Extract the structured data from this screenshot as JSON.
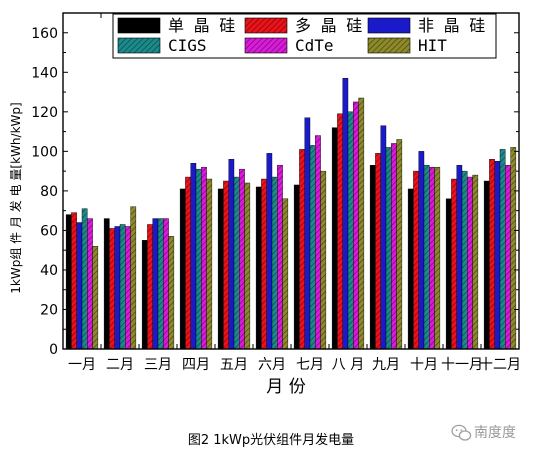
{
  "chart_data": {
    "type": "bar",
    "xlabel": "月 份",
    "ylabel": "1kWp组 件 月 发 电 量[kWh/kWp]",
    "ylim": [
      0,
      170
    ],
    "yticks": [
      0,
      20,
      40,
      60,
      80,
      100,
      120,
      140,
      160
    ],
    "grid": false,
    "legend_position": "top",
    "categories": [
      "一月",
      "二月",
      "三月",
      "四月",
      "五月",
      "六月",
      "七月",
      "八 月",
      "九月",
      "十月",
      "十一月",
      "十二月"
    ],
    "series": [
      {
        "name": "单 晶 硅",
        "color": "#000000",
        "values": [
          68,
          66,
          55,
          81,
          81,
          82,
          83,
          112,
          93,
          81,
          76,
          85
        ]
      },
      {
        "name": "多 晶 硅",
        "color": "#e8141c",
        "values": [
          69,
          61,
          63,
          87,
          85,
          86,
          101,
          119,
          99,
          90,
          86,
          96
        ]
      },
      {
        "name": "非 晶 硅",
        "color": "#1a1ac8",
        "values": [
          64,
          62,
          66,
          94,
          96,
          99,
          117,
          137,
          113,
          100,
          93,
          95
        ]
      },
      {
        "name": "CIGS",
        "color": "#1a8a8a",
        "values": [
          71,
          63,
          66,
          91,
          87,
          87,
          103,
          120,
          102,
          93,
          90,
          101
        ]
      },
      {
        "name": "CdTe",
        "color": "#d81cd8",
        "values": [
          66,
          62,
          66,
          92,
          91,
          93,
          108,
          125,
          104,
          92,
          87,
          93
        ]
      },
      {
        "name": "HIT",
        "color": "#8c8a2a",
        "values": [
          52,
          72,
          57,
          86,
          84,
          76,
          90,
          127,
          106,
          92,
          88,
          102
        ]
      }
    ]
  },
  "caption": "图2 1kWp光伏组件月发电量",
  "watermark": "南度度",
  "watermark_icon": "wechat-icon"
}
